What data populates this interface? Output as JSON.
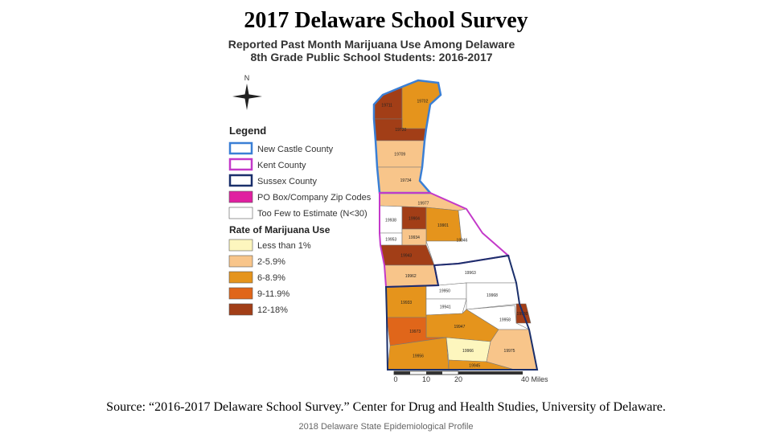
{
  "title": "2017 Delaware School Survey",
  "map": {
    "title": [
      "Reported Past Month Marijuana Use Among Delaware",
      "8th Grade Public School Students: 2016-2017"
    ],
    "north": "N",
    "legend": {
      "title": "Legend",
      "boundaries": [
        {
          "label": "New Castle County",
          "color": "#3a7fd5"
        },
        {
          "label": "Kent County",
          "color": "#c339c9"
        },
        {
          "label": "Sussex County",
          "color": "#1a2f6b"
        },
        {
          "label": "PO Box/Company Zip Codes",
          "color": "#e020a0"
        },
        {
          "label": "Too Few to Estimate (N<30)",
          "color": "#ffffff"
        }
      ],
      "rate_title": "Rate of Marijuana Use",
      "rates": [
        {
          "label": "Less than 1%",
          "color": "#fdf6be"
        },
        {
          "label": "2-5.9%",
          "color": "#f8c58a"
        },
        {
          "label": "6-8.9%",
          "color": "#e5941c"
        },
        {
          "label": "9-11.9%",
          "color": "#e0661a"
        },
        {
          "label": "12-18%",
          "color": "#a23e17"
        }
      ]
    },
    "scale": [
      "0",
      "10",
      "20",
      "40 Miles"
    ],
    "zips": [
      {
        "label": "19711",
        "color": "#a23e17"
      },
      {
        "label": "19702",
        "color": "#e5941c"
      },
      {
        "label": "19720",
        "color": "#a23e17"
      },
      {
        "label": "19709",
        "color": "#f8c58a"
      },
      {
        "label": "19734",
        "color": "#f8c58a"
      },
      {
        "label": "19977",
        "color": "#f8c58a"
      },
      {
        "label": "19938",
        "color": "#ffffff"
      },
      {
        "label": "19904",
        "color": "#a23e17"
      },
      {
        "label": "19901",
        "color": "#e5941c"
      },
      {
        "label": "19953",
        "color": "#ffffff"
      },
      {
        "label": "19934",
        "color": "#f8c58a"
      },
      {
        "label": "19946",
        "color": "#ffffff"
      },
      {
        "label": "19943",
        "color": "#a23e17"
      },
      {
        "label": "19962",
        "color": "#f8c58a"
      },
      {
        "label": "19963",
        "color": "#ffffff"
      },
      {
        "label": "19933",
        "color": "#e5941c"
      },
      {
        "label": "19950",
        "color": "#ffffff"
      },
      {
        "label": "19941",
        "color": "#ffffff"
      },
      {
        "label": "19968",
        "color": "#ffffff"
      },
      {
        "label": "19958",
        "color": "#ffffff"
      },
      {
        "label": "19947",
        "color": "#e5941c"
      },
      {
        "label": "19973",
        "color": "#e0661a"
      },
      {
        "label": "19956",
        "color": "#e5941c"
      },
      {
        "label": "19966",
        "color": "#fdf6be"
      },
      {
        "label": "19945",
        "color": "#e5941c"
      },
      {
        "label": "19975",
        "color": "#f8c58a"
      },
      {
        "label": "19930",
        "color": "#a23e17"
      }
    ]
  },
  "source": "Source: “2016-2017 Delaware School Survey.” Center for Drug and Health Studies, University of Delaware.",
  "footer": "2018 Delaware State Epidemiological Profile"
}
